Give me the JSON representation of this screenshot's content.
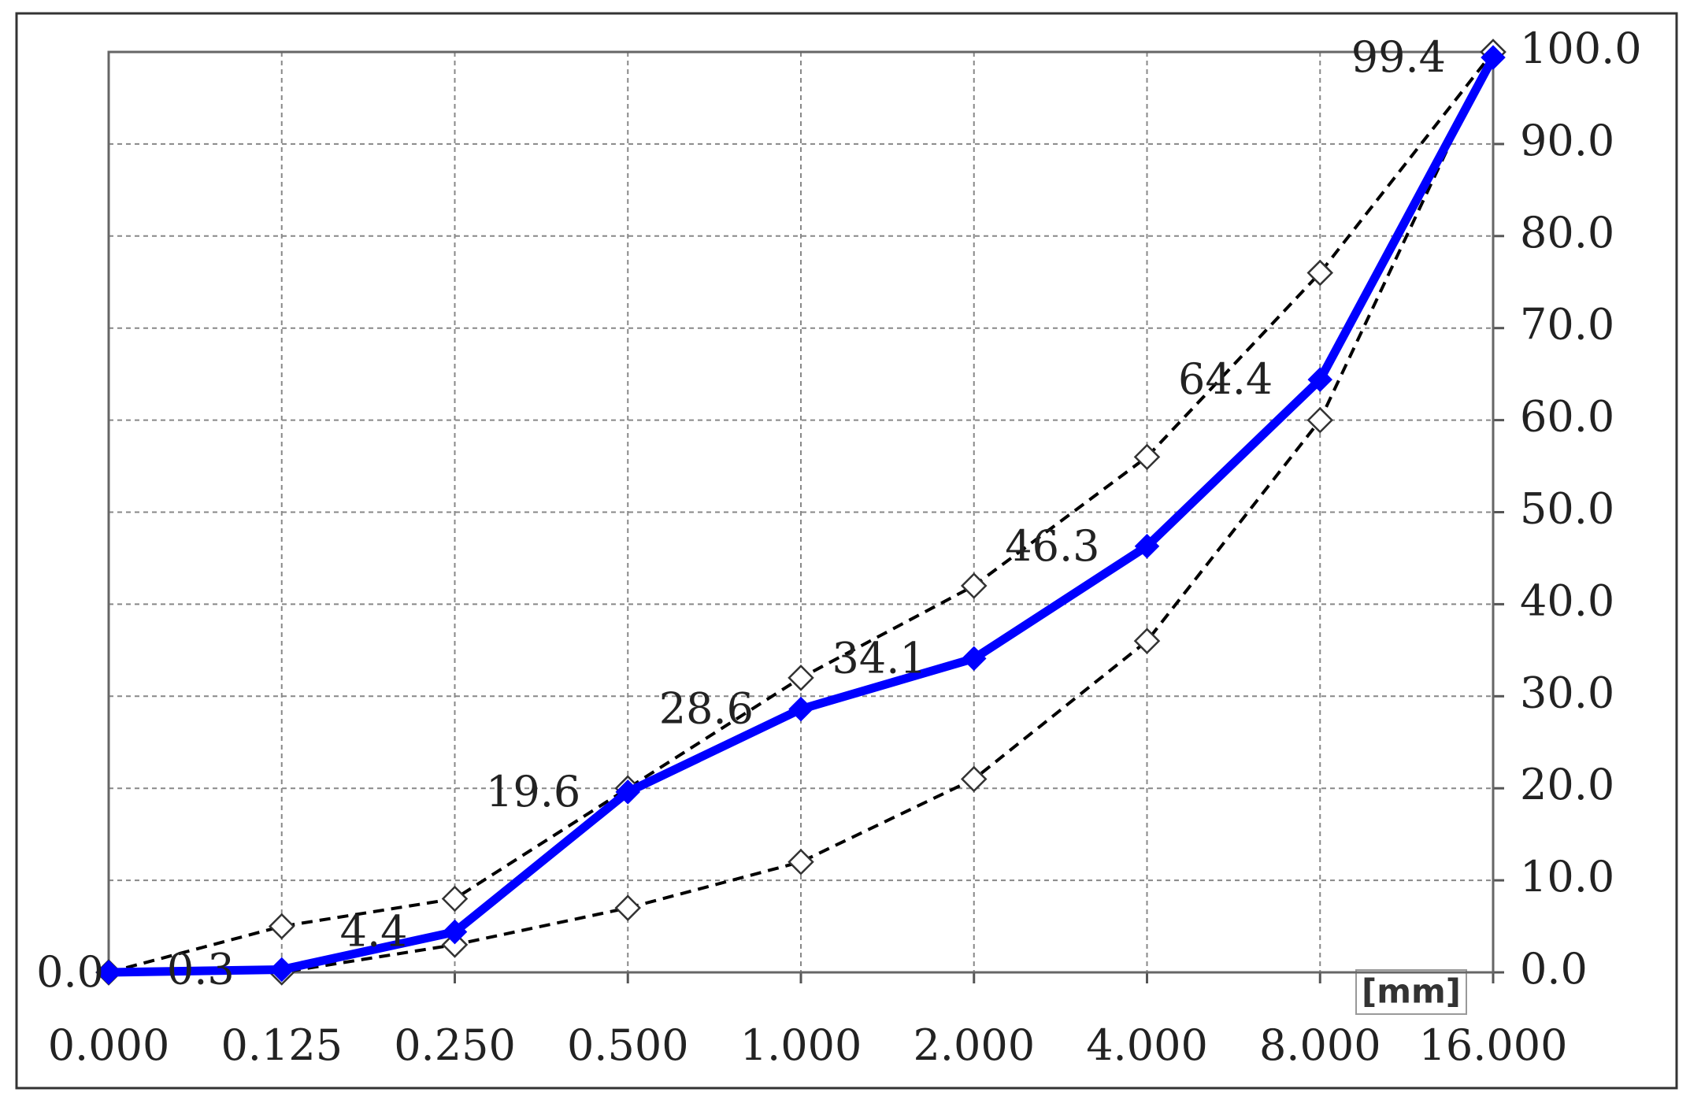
{
  "chart_data": {
    "type": "line",
    "categories": [
      "0.000",
      "0.125",
      "0.250",
      "0.500",
      "1.000",
      "2.000",
      "4.000",
      "8.000",
      "16.000"
    ],
    "x_unit": "[mm]",
    "series": [
      {
        "color": "#000000",
        "line_style": "dashed",
        "marker": "hollow-diamond",
        "values": [
          0,
          5,
          8,
          20,
          32,
          42,
          56,
          76,
          100
        ]
      },
      {
        "color": "#000000",
        "line_style": "dashed",
        "marker": "hollow-diamond",
        "values": [
          0,
          0,
          3,
          7,
          12,
          21,
          36,
          60,
          100
        ]
      },
      {
        "color": "#0000ff",
        "line_style": "solid",
        "marker": "filled-diamond",
        "values": [
          0,
          0.3,
          4.4,
          19.6,
          28.6,
          34.1,
          46.3,
          64.4,
          99.4
        ],
        "value_labels": [
          "0.0",
          "0.3",
          "4.4",
          "19.6",
          "28.6",
          "34.1",
          "46.3",
          "64.4",
          "99.4"
        ]
      }
    ],
    "ylim": [
      0,
      100
    ],
    "yticks": [
      {
        "value": 0,
        "label": "0.0"
      },
      {
        "value": 10,
        "label": "10.0"
      },
      {
        "value": 20,
        "label": "20.0"
      },
      {
        "value": 30,
        "label": "30.0"
      },
      {
        "value": 40,
        "label": "40.0"
      },
      {
        "value": 50,
        "label": "50.0"
      },
      {
        "value": 60,
        "label": "60.0"
      },
      {
        "value": 70,
        "label": "70.0"
      },
      {
        "value": 80,
        "label": "80.0"
      },
      {
        "value": 90,
        "label": "90.0"
      },
      {
        "value": 100,
        "label": "100.0"
      }
    ],
    "y_axis_side": "right",
    "grid": true
  }
}
